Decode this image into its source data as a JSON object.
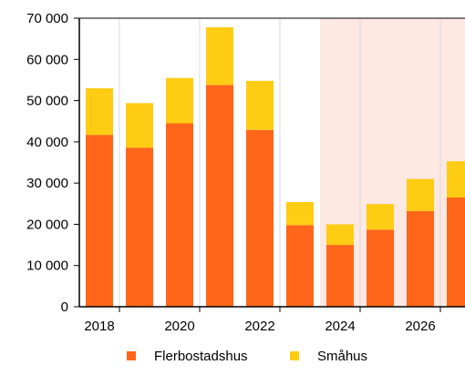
{
  "chart_data": {
    "type": "bar",
    "stacked": true,
    "title": "",
    "xlabel": "",
    "ylabel": "",
    "categories": [
      2018,
      2019,
      2020,
      2021,
      2022,
      2023,
      2024,
      2025,
      2026,
      2027
    ],
    "x_tick_labels": [
      "2018",
      "2020",
      "2022",
      "2024",
      "2026"
    ],
    "y_tick_labels": [
      "0",
      "10 000",
      "20 000",
      "30 000",
      "40 000",
      "50 000",
      "60 000",
      "70 000"
    ],
    "ylim": [
      0,
      70000
    ],
    "forecast_shading": {
      "from": 2024,
      "to": 2027,
      "color": "#fde8e2"
    },
    "grid": "vertical lines",
    "legend_position": "bottom",
    "series": [
      {
        "name": "Flerbostadshus",
        "color": "#ff6619",
        "values": [
          41700,
          38600,
          44500,
          53800,
          42900,
          19800,
          15000,
          18700,
          23200,
          26500
        ]
      },
      {
        "name": "Småhus",
        "color": "#ffcc14",
        "values": [
          11300,
          10800,
          11000,
          14000,
          11900,
          5600,
          5000,
          6200,
          7800,
          8800
        ]
      }
    ]
  }
}
